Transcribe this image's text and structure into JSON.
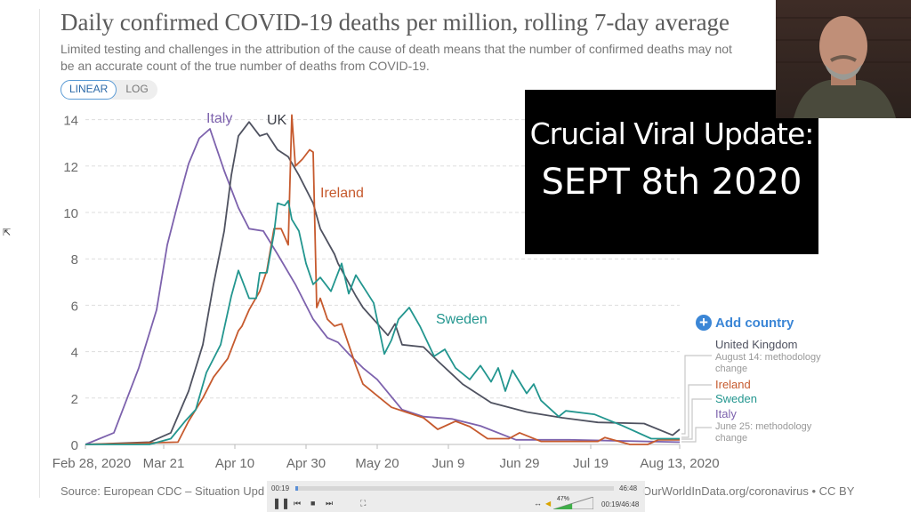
{
  "header": {
    "title": "Daily confirmed COVID-19 deaths per million, rolling 7-day average",
    "subtitle": "Limited testing and challenges in the attribution of the cause of death means that the number of confirmed deaths may not be an accurate count of the true number of deaths from COVID-19.",
    "scale_options": [
      "LINEAR",
      "LOG"
    ],
    "selected_scale": "LINEAR"
  },
  "overlay": {
    "line1": "Crucial Viral Update:",
    "line2": "SEPT 8th 2020"
  },
  "legend": {
    "add_country": "Add country",
    "entries": [
      {
        "name": "United Kingdom",
        "note": "August 14: methodology change"
      },
      {
        "name": "Ireland",
        "note": ""
      },
      {
        "name": "Sweden",
        "note": ""
      },
      {
        "name": "Italy",
        "note": "June 25: methodology change"
      }
    ]
  },
  "footer": {
    "source_left": "Source: European CDC – Situation Upd",
    "source_right": "OurWorldInData.org/coronavirus • CC BY"
  },
  "player": {
    "elapsed": "00:19",
    "duration": "46:48",
    "time_readout": "00:19/46:48",
    "volume": "47%",
    "progress_fraction": 0.007,
    "volume_fraction": 0.47
  },
  "chart_data": {
    "type": "line",
    "title": "Daily confirmed COVID-19 deaths per million, rolling 7-day average",
    "ylim": [
      0,
      14
    ],
    "xlim": [
      "2020-02-28",
      "2020-08-13"
    ],
    "y_ticks": [
      0,
      2,
      4,
      6,
      8,
      10,
      12,
      14
    ],
    "x_ticks": [
      {
        "date": "2020-02-28",
        "label": "Feb 28, 2020"
      },
      {
        "date": "2020-03-21",
        "label": "Mar 21"
      },
      {
        "date": "2020-04-10",
        "label": "Apr 10"
      },
      {
        "date": "2020-04-30",
        "label": "Apr 30"
      },
      {
        "date": "2020-05-20",
        "label": "May 20"
      },
      {
        "date": "2020-06-09",
        "label": "Jun 9"
      },
      {
        "date": "2020-06-29",
        "label": "Jun 29"
      },
      {
        "date": "2020-07-19",
        "label": "Jul 19"
      },
      {
        "date": "2020-08-13",
        "label": "Aug 13, 2020"
      }
    ],
    "grid": "horizontal dashed",
    "series": [
      {
        "name": "Italy",
        "color": "#7d62ad",
        "points": [
          [
            "2020-02-28",
            0
          ],
          [
            "2020-03-07",
            0.5
          ],
          [
            "2020-03-14",
            3.3
          ],
          [
            "2020-03-19",
            5.8
          ],
          [
            "2020-03-22",
            8.6
          ],
          [
            "2020-03-25",
            10.4
          ],
          [
            "2020-03-28",
            12.1
          ],
          [
            "2020-03-31",
            13.2
          ],
          [
            "2020-04-03",
            13.6
          ],
          [
            "2020-04-07",
            11.8
          ],
          [
            "2020-04-11",
            10.2
          ],
          [
            "2020-04-14",
            9.3
          ],
          [
            "2020-04-18",
            9.2
          ],
          [
            "2020-04-22",
            8.2
          ],
          [
            "2020-04-27",
            6.9
          ],
          [
            "2020-05-02",
            5.4
          ],
          [
            "2020-05-06",
            4.6
          ],
          [
            "2020-05-09",
            4.4
          ],
          [
            "2020-05-12",
            3.9
          ],
          [
            "2020-05-16",
            3.3
          ],
          [
            "2020-05-20",
            2.8
          ],
          [
            "2020-05-27",
            1.5
          ],
          [
            "2020-06-02",
            1.2
          ],
          [
            "2020-06-10",
            1.1
          ],
          [
            "2020-06-18",
            0.8
          ],
          [
            "2020-06-28",
            0.2
          ],
          [
            "2020-07-13",
            0.2
          ],
          [
            "2020-08-13",
            0.1
          ]
        ]
      },
      {
        "name": "UK",
        "color": "#4f5260",
        "points": [
          [
            "2020-02-28",
            0
          ],
          [
            "2020-03-17",
            0.1
          ],
          [
            "2020-03-23",
            0.5
          ],
          [
            "2020-03-28",
            2.3
          ],
          [
            "2020-04-01",
            4.3
          ],
          [
            "2020-04-04",
            6.9
          ],
          [
            "2020-04-07",
            9.2
          ],
          [
            "2020-04-09",
            11.6
          ],
          [
            "2020-04-11",
            13.3
          ],
          [
            "2020-04-14",
            13.9
          ],
          [
            "2020-04-17",
            13.3
          ],
          [
            "2020-04-19",
            13.4
          ],
          [
            "2020-04-22",
            12.7
          ],
          [
            "2020-04-25",
            12.4
          ],
          [
            "2020-04-28",
            11.6
          ],
          [
            "2020-05-02",
            10.4
          ],
          [
            "2020-05-04",
            9.3
          ],
          [
            "2020-05-08",
            8.2
          ],
          [
            "2020-05-09",
            7.8
          ],
          [
            "2020-05-14",
            6.4
          ],
          [
            "2020-05-16",
            5.9
          ],
          [
            "2020-05-23",
            4.7
          ],
          [
            "2020-05-25",
            5.2
          ],
          [
            "2020-05-27",
            4.3
          ],
          [
            "2020-06-02",
            4.2
          ],
          [
            "2020-06-06",
            3.6
          ],
          [
            "2020-06-13",
            2.6
          ],
          [
            "2020-06-21",
            1.8
          ],
          [
            "2020-07-01",
            1.4
          ],
          [
            "2020-07-11",
            1.15
          ],
          [
            "2020-07-21",
            0.95
          ],
          [
            "2020-08-03",
            0.9
          ],
          [
            "2020-08-11",
            0.4
          ],
          [
            "2020-08-13",
            0.65
          ]
        ]
      },
      {
        "name": "Ireland",
        "color": "#c65a2e",
        "points": [
          [
            "2020-02-28",
            0
          ],
          [
            "2020-03-25",
            0.1
          ],
          [
            "2020-03-28",
            1.0
          ],
          [
            "2020-04-01",
            2.0
          ],
          [
            "2020-04-04",
            2.9
          ],
          [
            "2020-04-08",
            3.7
          ],
          [
            "2020-04-11",
            4.9
          ],
          [
            "2020-04-12",
            5.1
          ],
          [
            "2020-04-14",
            5.8
          ],
          [
            "2020-04-17",
            6.6
          ],
          [
            "2020-04-19",
            7.5
          ],
          [
            "2020-04-21",
            9.3
          ],
          [
            "2020-04-23",
            9.3
          ],
          [
            "2020-04-25",
            8.6
          ],
          [
            "2020-04-26",
            14.2
          ],
          [
            "2020-04-27",
            12.0
          ],
          [
            "2020-04-29",
            12.3
          ],
          [
            "2020-05-01",
            12.7
          ],
          [
            "2020-05-02",
            12.6
          ],
          [
            "2020-05-03",
            5.9
          ],
          [
            "2020-05-04",
            6.3
          ],
          [
            "2020-05-06",
            5.4
          ],
          [
            "2020-05-08",
            5.1
          ],
          [
            "2020-05-10",
            5.2
          ],
          [
            "2020-05-12",
            4.3
          ],
          [
            "2020-05-14",
            3.4
          ],
          [
            "2020-05-16",
            2.6
          ],
          [
            "2020-05-20",
            2.1
          ],
          [
            "2020-05-24",
            1.6
          ],
          [
            "2020-05-28",
            1.4
          ],
          [
            "2020-06-02",
            1.15
          ],
          [
            "2020-06-06",
            0.65
          ],
          [
            "2020-06-11",
            1.0
          ],
          [
            "2020-06-15",
            0.77
          ],
          [
            "2020-06-20",
            0.25
          ],
          [
            "2020-06-26",
            0.25
          ],
          [
            "2020-06-29",
            0.5
          ],
          [
            "2020-07-05",
            0.13
          ],
          [
            "2020-07-21",
            0.13
          ],
          [
            "2020-07-23",
            0.3
          ],
          [
            "2020-07-30",
            0
          ],
          [
            "2020-08-04",
            0
          ],
          [
            "2020-08-07",
            0.2
          ],
          [
            "2020-08-13",
            0.2
          ]
        ]
      },
      {
        "name": "Sweden",
        "color": "#23968f",
        "points": [
          [
            "2020-02-28",
            0
          ],
          [
            "2020-03-17",
            0
          ],
          [
            "2020-03-23",
            0.25
          ],
          [
            "2020-03-27",
            1.0
          ],
          [
            "2020-03-30",
            1.5
          ],
          [
            "2020-04-02",
            3.1
          ],
          [
            "2020-04-06",
            4.3
          ],
          [
            "2020-04-09",
            6.4
          ],
          [
            "2020-04-11",
            7.5
          ],
          [
            "2020-04-12",
            7.1
          ],
          [
            "2020-04-14",
            6.3
          ],
          [
            "2020-04-16",
            6.3
          ],
          [
            "2020-04-17",
            7.4
          ],
          [
            "2020-04-19",
            7.4
          ],
          [
            "2020-04-21",
            9.1
          ],
          [
            "2020-04-22",
            10.4
          ],
          [
            "2020-04-24",
            10.3
          ],
          [
            "2020-04-25",
            10.5
          ],
          [
            "2020-04-26",
            9.7
          ],
          [
            "2020-04-28",
            9.2
          ],
          [
            "2020-04-30",
            7.8
          ],
          [
            "2020-05-02",
            6.9
          ],
          [
            "2020-05-04",
            7.2
          ],
          [
            "2020-05-07",
            6.6
          ],
          [
            "2020-05-10",
            7.8
          ],
          [
            "2020-05-12",
            6.5
          ],
          [
            "2020-05-14",
            7.3
          ],
          [
            "2020-05-19",
            6.1
          ],
          [
            "2020-05-22",
            3.9
          ],
          [
            "2020-05-24",
            4.5
          ],
          [
            "2020-05-26",
            5.4
          ],
          [
            "2020-05-29",
            5.9
          ],
          [
            "2020-06-01",
            5.1
          ],
          [
            "2020-06-05",
            3.8
          ],
          [
            "2020-06-08",
            4.1
          ],
          [
            "2020-06-11",
            3.3
          ],
          [
            "2020-06-15",
            2.8
          ],
          [
            "2020-06-18",
            3.4
          ],
          [
            "2020-06-21",
            2.7
          ],
          [
            "2020-06-23",
            3.3
          ],
          [
            "2020-06-25",
            2.3
          ],
          [
            "2020-06-27",
            3.2
          ],
          [
            "2020-07-01",
            2.2
          ],
          [
            "2020-07-03",
            2.6
          ],
          [
            "2020-07-05",
            1.9
          ],
          [
            "2020-07-10",
            1.2
          ],
          [
            "2020-07-12",
            1.45
          ],
          [
            "2020-07-20",
            1.3
          ],
          [
            "2020-07-28",
            0.8
          ],
          [
            "2020-08-05",
            0.25
          ],
          [
            "2020-08-13",
            0.25
          ]
        ]
      }
    ],
    "annotations": [
      {
        "series": "Italy",
        "text": "Italy"
      },
      {
        "series": "UK",
        "text": "UK"
      },
      {
        "series": "Ireland",
        "text": "Ireland"
      },
      {
        "series": "Sweden",
        "text": "Sweden"
      }
    ]
  }
}
